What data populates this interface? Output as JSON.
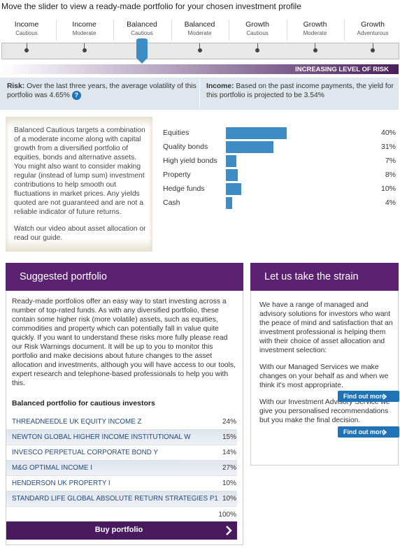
{
  "header": {
    "title": "Move the slider to view a ready-made portfolio for your chosen investment profile"
  },
  "profiles": [
    {
      "name": "Income",
      "sub": "Cautious"
    },
    {
      "name": "Income",
      "sub": "Moderate"
    },
    {
      "name": "Balanced",
      "sub": "Cautious"
    },
    {
      "name": "Balanced",
      "sub": "Moderate"
    },
    {
      "name": "Growth",
      "sub": "Cautious"
    },
    {
      "name": "Growth",
      "sub": "Moderate"
    },
    {
      "name": "Growth",
      "sub": "Adventurous"
    }
  ],
  "selected_profile": 2,
  "risk_banner": "INCREASING LEVEL OF RISK",
  "risk": {
    "label": "Risk:",
    "text": "Over the last three years, the average volatility of this portfolio was 4.65%",
    "help": "?"
  },
  "income": {
    "label": "Income:",
    "text": "Based on the past income payments, the yield for this portfolio is projected to be 3.54%"
  },
  "description": [
    "Balanced Cautious targets a combination of a moderate income along with capital growth from a diversified portfolio of equities, bonds and alternative assets. You might also want to consider making regular (instead of lump sum) investment contributions to help smooth out fluctuations in market prices. Any yields quoted are not guaranteed and are not a reliable indicator of future returns.",
    "Watch our video about asset allocation or read our guide."
  ],
  "chart_data": {
    "type": "bar",
    "categories": [
      "Equities",
      "Quality bonds",
      "High yield bonds",
      "Property",
      "Hedge funds",
      "Cash"
    ],
    "values": [
      40,
      31,
      7,
      8,
      10,
      4
    ],
    "value_labels": [
      "40%",
      "31%",
      "7%",
      "8%",
      "10%",
      "4%"
    ],
    "color": "#3d8cc6"
  },
  "suggested": {
    "title": "Suggested portfolio",
    "text": "Ready-made portfolios offer an easy way to start investing across a number of top-rated funds. As with any diversified portfolio, these contain some higher risk (more volatile) assets, such as equities, commodities and property which can potentially fall in value quite quickly. If you want to understand these risks more fully please read our Risk Warnings document. It will be up to you to monitor this portfolio and make decisions about future changes to the asset allocation and investments, although you will have access to our tools, expert research and telephone-based professionals to help you with this.",
    "subtitle": "Balanced portfolio for cautious investors",
    "funds": [
      [
        "THREADNEEDLE UK EQUITY INCOME Z",
        "24%"
      ],
      [
        "NEWTON GLOBAL HIGHER INCOME INSTITUTIONAL W",
        "15%"
      ],
      [
        "INVESCO PERPETUAL CORPORATE BOND Y",
        "14%"
      ],
      [
        "M&G OPTIMAL INCOME I",
        "27%"
      ],
      [
        "HENDERSON UK PROPERTY I",
        "10%"
      ],
      [
        "STANDARD LIFE GLOBAL ABSOLUTE RETURN STRATEGIES P1",
        "10%"
      ]
    ],
    "total": "100%",
    "button": "Buy portfolio"
  },
  "strain": {
    "title": "Let us take the strain",
    "paragraphs": [
      "We have a range of managed and advisory solutions for investors who want the peace of mind and satisfaction that an investment professional is helping them with their choice of asset allocation and investment selection:",
      "With our Managed Services we make changes on your behalf as and when we think it's most appropriate.",
      "With our Investment Advisory Service we give you personalised recommendations but you make the final decision."
    ],
    "buttons": [
      "Find out more",
      "Find out more"
    ]
  }
}
